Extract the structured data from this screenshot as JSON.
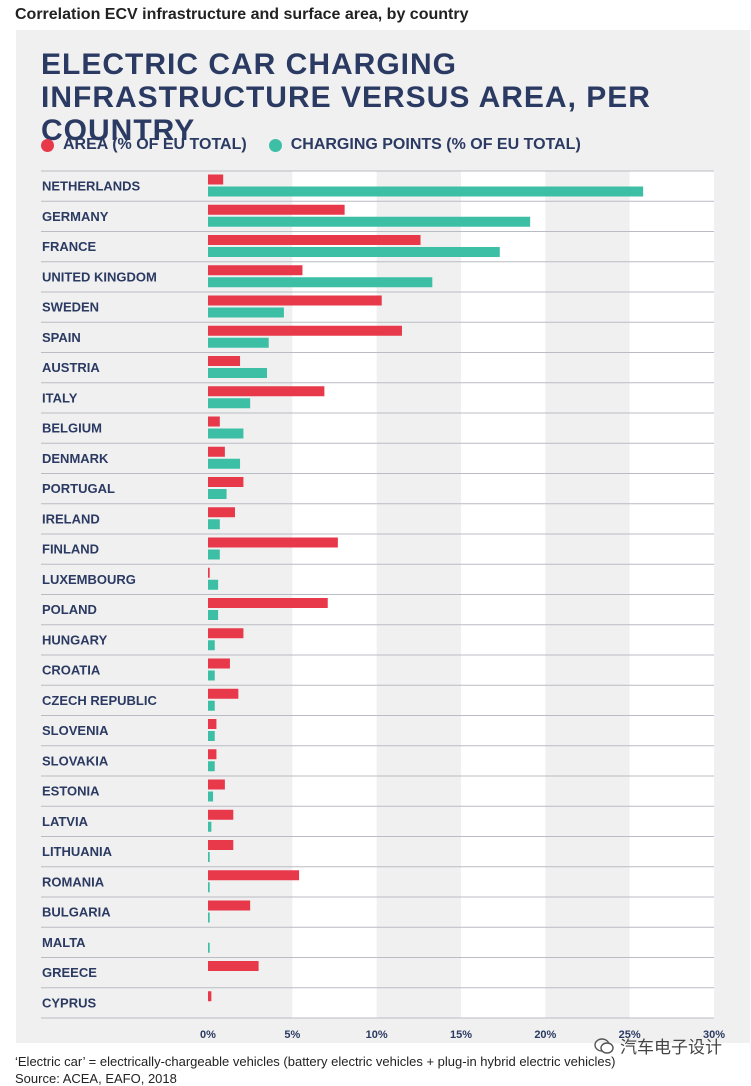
{
  "figure_caption": "Correlation ECV infrastructure and surface area, by country",
  "watermark": "汽车电子设计",
  "footnote": "‘Electric car’ = electrically-chargeable vehicles (battery electric vehicles + plug-in hybrid electric vehicles)",
  "source": "Source: ACEA, EAFO, 2018",
  "colors": {
    "area": "#e8394a",
    "charging": "#3cbfa5",
    "title": "#2b3a62",
    "panel": "#f0f0f0",
    "band": "#ffffff"
  },
  "chart_data": {
    "type": "bar",
    "orientation": "horizontal",
    "title": "ELECTRIC CAR CHARGING INFRASTRUCTURE VERSUS AREA, PER COUNTRY",
    "legend_placement": "top-left",
    "xlim": [
      0,
      30
    ],
    "x_ticks": [
      "0%",
      "5%",
      "10%",
      "15%",
      "20%",
      "25%",
      "30%"
    ],
    "categories": [
      "NETHERLANDS",
      "GERMANY",
      "FRANCE",
      "UNITED KINGDOM",
      "SWEDEN",
      "SPAIN",
      "AUSTRIA",
      "ITALY",
      "BELGIUM",
      "DENMARK",
      "PORTUGAL",
      "IRELAND",
      "FINLAND",
      "LUXEMBOURG",
      "POLAND",
      "HUNGARY",
      "CROATIA",
      "CZECH REPUBLIC",
      "SLOVENIA",
      "SLOVAKIA",
      "ESTONIA",
      "LATVIA",
      "LITHUANIA",
      "ROMANIA",
      "BULGARIA",
      "MALTA",
      "GREECE",
      "CYPRUS"
    ],
    "series": [
      {
        "name": "AREA (% OF EU TOTAL)",
        "color": "#e8394a",
        "values": [
          0.9,
          8.1,
          12.6,
          5.6,
          10.3,
          11.5,
          1.9,
          6.9,
          0.7,
          1.0,
          2.1,
          1.6,
          7.7,
          0.1,
          7.1,
          2.1,
          1.3,
          1.8,
          0.5,
          0.5,
          1.0,
          1.5,
          1.5,
          5.4,
          2.5,
          0.0,
          3.0,
          0.2
        ]
      },
      {
        "name": "CHARGING POINTS (% OF EU TOTAL)",
        "color": "#3cbfa5",
        "values": [
          25.8,
          19.1,
          17.3,
          13.3,
          4.5,
          3.6,
          3.5,
          2.5,
          2.1,
          1.9,
          1.1,
          0.7,
          0.7,
          0.6,
          0.6,
          0.4,
          0.4,
          0.4,
          0.4,
          0.4,
          0.3,
          0.2,
          0.1,
          0.1,
          0.1,
          0.1,
          0.0,
          0.0
        ]
      }
    ]
  }
}
